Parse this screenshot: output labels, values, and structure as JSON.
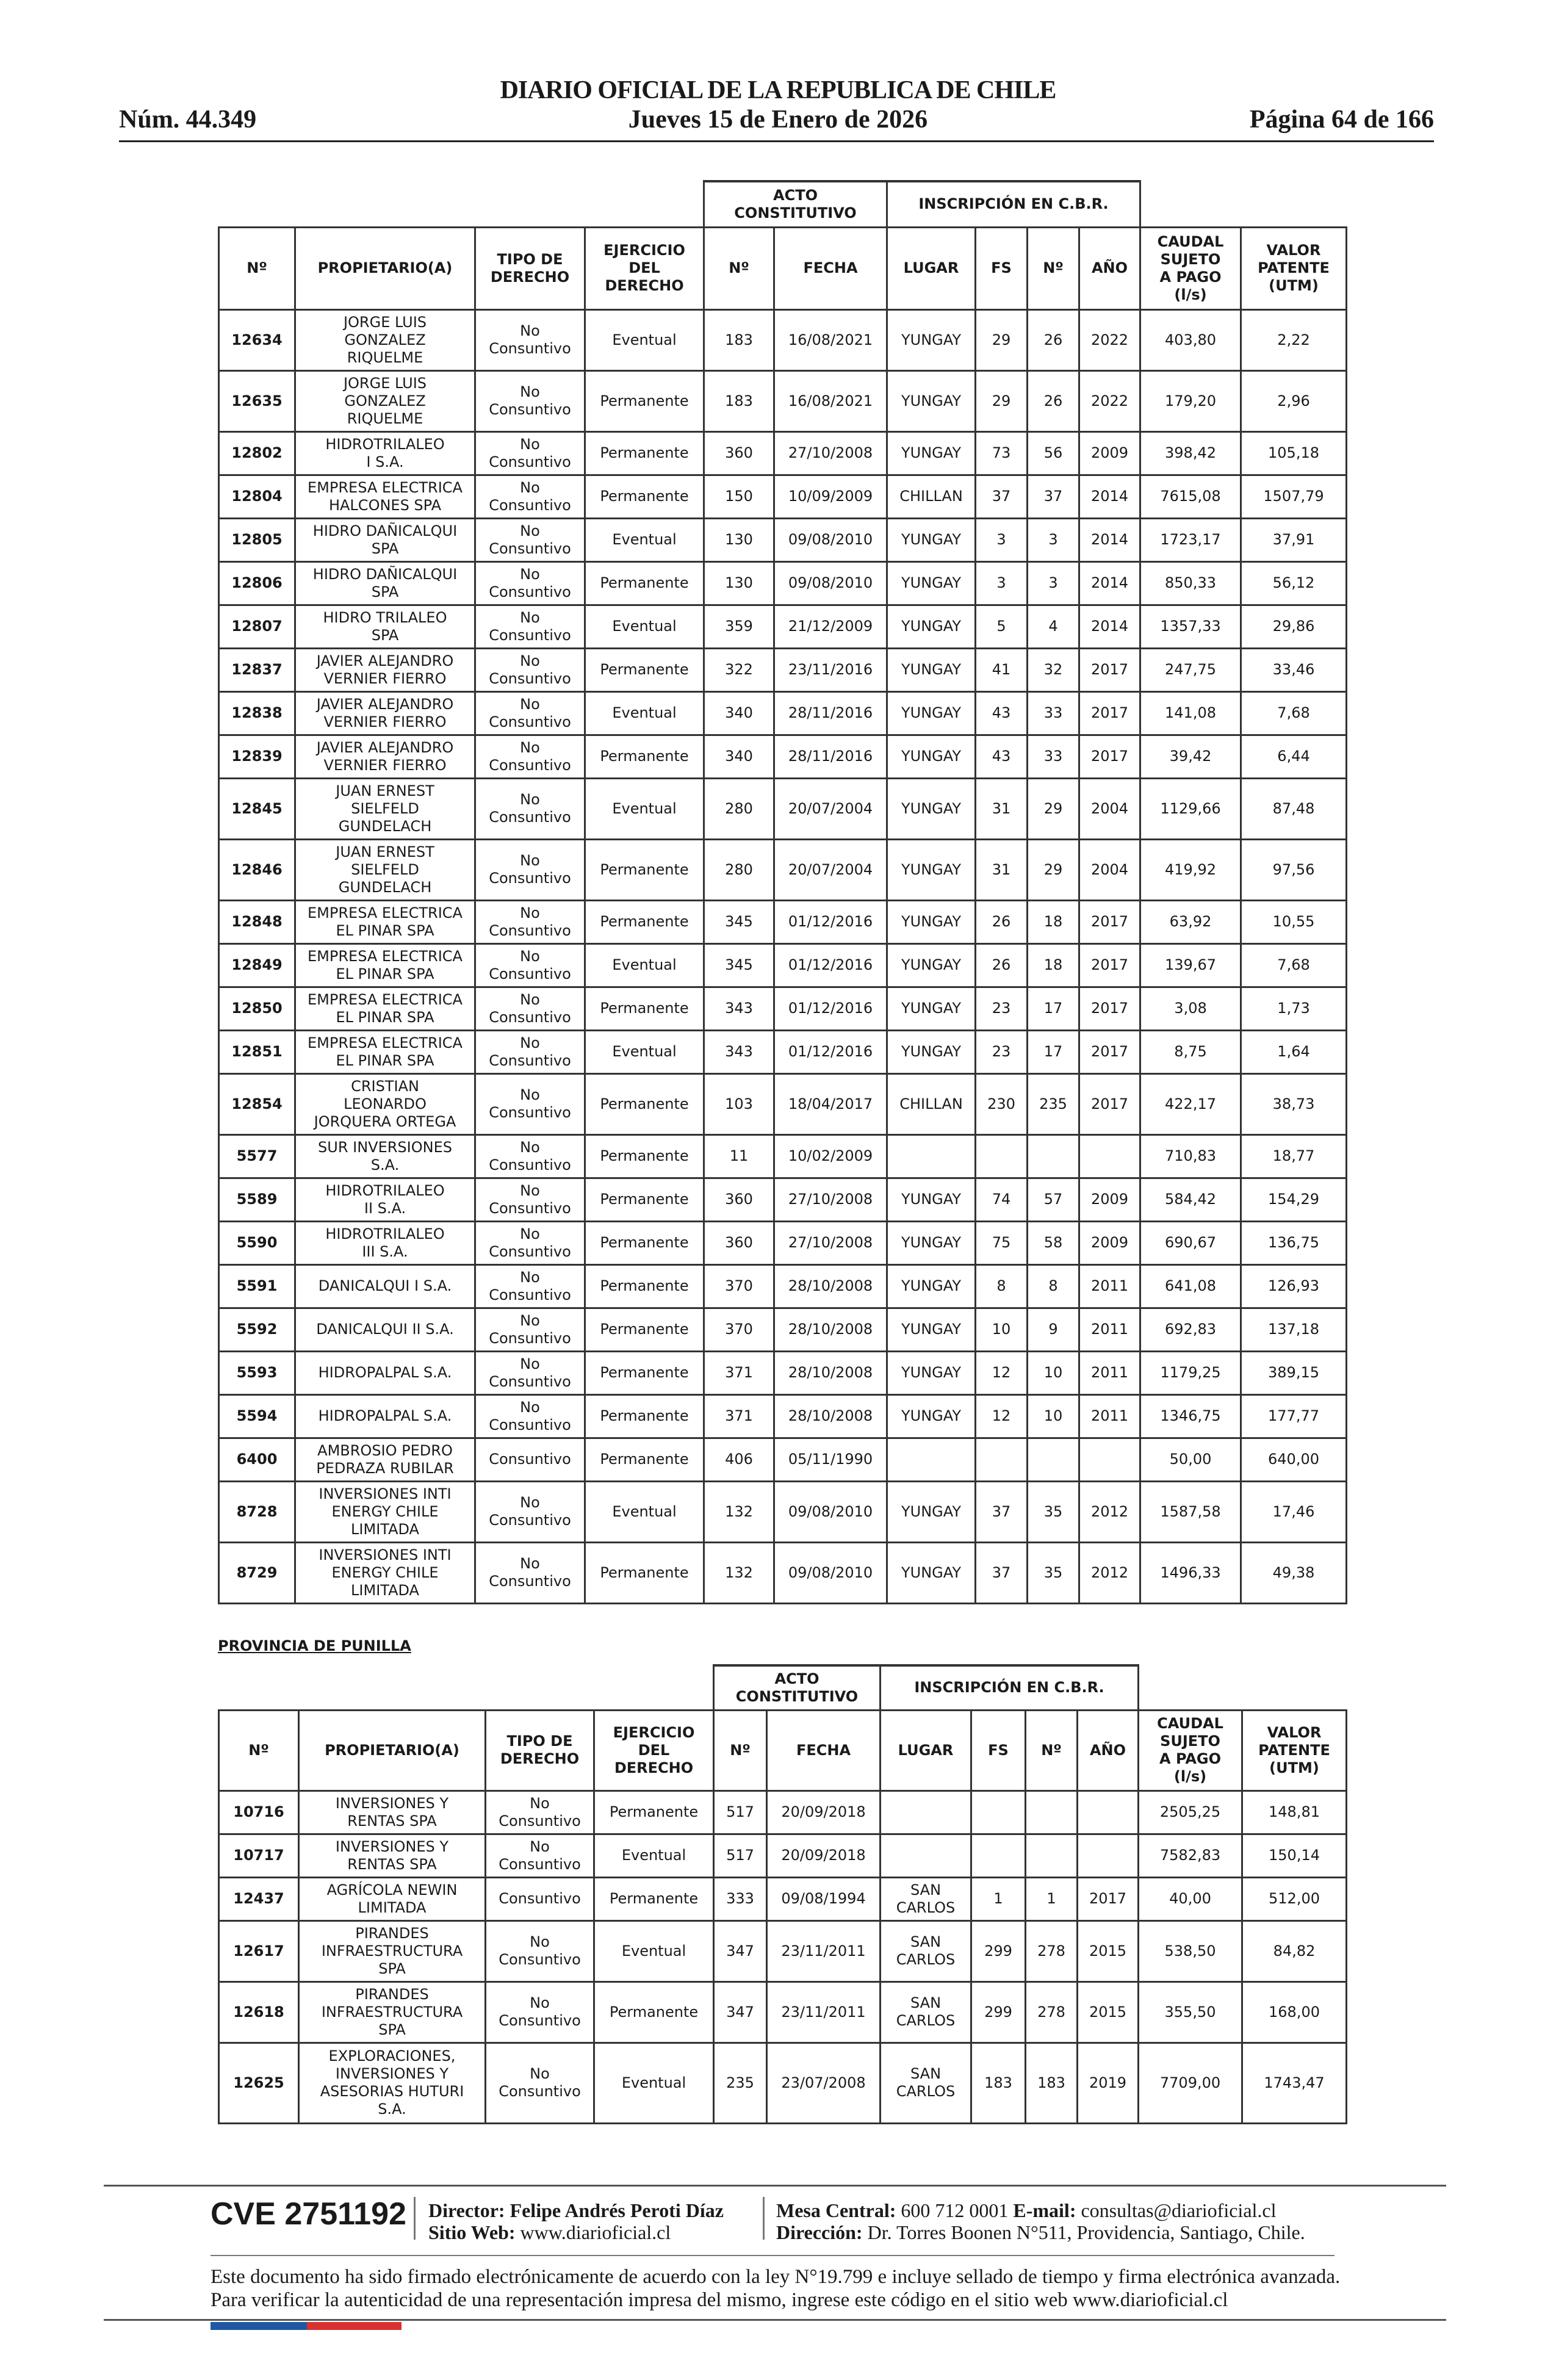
{
  "header": {
    "title": "DIARIO OFICIAL DE LA REPUBLICA DE CHILE",
    "number": "Núm. 44.349",
    "date": "Jueves 15 de Enero de 2026",
    "page": "Página 64 de 166"
  },
  "columns": {
    "group_acto": "ACTO\nCONSTITUTIVO",
    "group_inscripcion": "INSCRIPCIÓN EN C.B.R.",
    "headers": [
      "Nº",
      "PROPIETARIO(A)",
      "TIPO DE\nDERECHO",
      "EJERCICIO\nDEL\nDERECHO",
      "Nº",
      "FECHA",
      "LUGAR",
      "FS",
      "Nº",
      "AÑO",
      "CAUDAL\nSUJETO\nA PAGO\n(l/s)",
      "VALOR\nPATENTE\n(UTM)"
    ]
  },
  "table1": {
    "rows": [
      [
        "12634",
        "JORGE LUIS\nGONZALEZ\nRIQUELME",
        "No\nConsuntivo",
        "Eventual",
        "183",
        "16/08/2021",
        "YUNGAY",
        "29",
        "26",
        "2022",
        "403,80",
        "2,22"
      ],
      [
        "12635",
        "JORGE LUIS\nGONZALEZ\nRIQUELME",
        "No\nConsuntivo",
        "Permanente",
        "183",
        "16/08/2021",
        "YUNGAY",
        "29",
        "26",
        "2022",
        "179,20",
        "2,96"
      ],
      [
        "12802",
        "HIDROTRILALEO\nI S.A.",
        "No\nConsuntivo",
        "Permanente",
        "360",
        "27/10/2008",
        "YUNGAY",
        "73",
        "56",
        "2009",
        "398,42",
        "105,18"
      ],
      [
        "12804",
        "EMPRESA ELECTRICA\nHALCONES SPA",
        "No\nConsuntivo",
        "Permanente",
        "150",
        "10/09/2009",
        "CHILLAN",
        "37",
        "37",
        "2014",
        "7615,08",
        "1507,79"
      ],
      [
        "12805",
        "HIDRO DAÑICALQUI\nSPA",
        "No\nConsuntivo",
        "Eventual",
        "130",
        "09/08/2010",
        "YUNGAY",
        "3",
        "3",
        "2014",
        "1723,17",
        "37,91"
      ],
      [
        "12806",
        "HIDRO DAÑICALQUI\nSPA",
        "No\nConsuntivo",
        "Permanente",
        "130",
        "09/08/2010",
        "YUNGAY",
        "3",
        "3",
        "2014",
        "850,33",
        "56,12"
      ],
      [
        "12807",
        "HIDRO TRILALEO\nSPA",
        "No\nConsuntivo",
        "Eventual",
        "359",
        "21/12/2009",
        "YUNGAY",
        "5",
        "4",
        "2014",
        "1357,33",
        "29,86"
      ],
      [
        "12837",
        "JAVIER ALEJANDRO\nVERNIER FIERRO",
        "No\nConsuntivo",
        "Permanente",
        "322",
        "23/11/2016",
        "YUNGAY",
        "41",
        "32",
        "2017",
        "247,75",
        "33,46"
      ],
      [
        "12838",
        "JAVIER ALEJANDRO\nVERNIER FIERRO",
        "No\nConsuntivo",
        "Eventual",
        "340",
        "28/11/2016",
        "YUNGAY",
        "43",
        "33",
        "2017",
        "141,08",
        "7,68"
      ],
      [
        "12839",
        "JAVIER ALEJANDRO\nVERNIER FIERRO",
        "No\nConsuntivo",
        "Permanente",
        "340",
        "28/11/2016",
        "YUNGAY",
        "43",
        "33",
        "2017",
        "39,42",
        "6,44"
      ],
      [
        "12845",
        "JUAN ERNEST\nSIELFELD\nGUNDELACH",
        "No\nConsuntivo",
        "Eventual",
        "280",
        "20/07/2004",
        "YUNGAY",
        "31",
        "29",
        "2004",
        "1129,66",
        "87,48"
      ],
      [
        "12846",
        "JUAN ERNEST\nSIELFELD\nGUNDELACH",
        "No\nConsuntivo",
        "Permanente",
        "280",
        "20/07/2004",
        "YUNGAY",
        "31",
        "29",
        "2004",
        "419,92",
        "97,56"
      ],
      [
        "12848",
        "EMPRESA ELECTRICA\nEL PINAR SPA",
        "No\nConsuntivo",
        "Permanente",
        "345",
        "01/12/2016",
        "YUNGAY",
        "26",
        "18",
        "2017",
        "63,92",
        "10,55"
      ],
      [
        "12849",
        "EMPRESA ELECTRICA\nEL PINAR SPA",
        "No\nConsuntivo",
        "Eventual",
        "345",
        "01/12/2016",
        "YUNGAY",
        "26",
        "18",
        "2017",
        "139,67",
        "7,68"
      ],
      [
        "12850",
        "EMPRESA ELECTRICA\nEL PINAR SPA",
        "No\nConsuntivo",
        "Permanente",
        "343",
        "01/12/2016",
        "YUNGAY",
        "23",
        "17",
        "2017",
        "3,08",
        "1,73"
      ],
      [
        "12851",
        "EMPRESA ELECTRICA\nEL PINAR SPA",
        "No\nConsuntivo",
        "Eventual",
        "343",
        "01/12/2016",
        "YUNGAY",
        "23",
        "17",
        "2017",
        "8,75",
        "1,64"
      ],
      [
        "12854",
        "CRISTIAN\nLEONARDO\nJORQUERA ORTEGA",
        "No\nConsuntivo",
        "Permanente",
        "103",
        "18/04/2017",
        "CHILLAN",
        "230",
        "235",
        "2017",
        "422,17",
        "38,73"
      ],
      [
        "5577",
        "SUR INVERSIONES\nS.A.",
        "No\nConsuntivo",
        "Permanente",
        "11",
        "10/02/2009",
        "",
        "",
        "",
        "",
        "710,83",
        "18,77"
      ],
      [
        "5589",
        "HIDROTRILALEO\nII S.A.",
        "No\nConsuntivo",
        "Permanente",
        "360",
        "27/10/2008",
        "YUNGAY",
        "74",
        "57",
        "2009",
        "584,42",
        "154,29"
      ],
      [
        "5590",
        "HIDROTRILALEO\nIII S.A.",
        "No\nConsuntivo",
        "Permanente",
        "360",
        "27/10/2008",
        "YUNGAY",
        "75",
        "58",
        "2009",
        "690,67",
        "136,75"
      ],
      [
        "5591",
        "DANICALQUI I S.A.",
        "No\nConsuntivo",
        "Permanente",
        "370",
        "28/10/2008",
        "YUNGAY",
        "8",
        "8",
        "2011",
        "641,08",
        "126,93"
      ],
      [
        "5592",
        "DANICALQUI II S.A.",
        "No\nConsuntivo",
        "Permanente",
        "370",
        "28/10/2008",
        "YUNGAY",
        "10",
        "9",
        "2011",
        "692,83",
        "137,18"
      ],
      [
        "5593",
        "HIDROPALPAL S.A.",
        "No\nConsuntivo",
        "Permanente",
        "371",
        "28/10/2008",
        "YUNGAY",
        "12",
        "10",
        "2011",
        "1179,25",
        "389,15"
      ],
      [
        "5594",
        "HIDROPALPAL S.A.",
        "No\nConsuntivo",
        "Permanente",
        "371",
        "28/10/2008",
        "YUNGAY",
        "12",
        "10",
        "2011",
        "1346,75",
        "177,77"
      ],
      [
        "6400",
        "AMBROSIO PEDRO\nPEDRAZA RUBILAR",
        "Consuntivo",
        "Permanente",
        "406",
        "05/11/1990",
        "",
        "",
        "",
        "",
        "50,00",
        "640,00"
      ],
      [
        "8728",
        "INVERSIONES INTI\nENERGY CHILE\nLIMITADA",
        "No\nConsuntivo",
        "Eventual",
        "132",
        "09/08/2010",
        "YUNGAY",
        "37",
        "35",
        "2012",
        "1587,58",
        "17,46"
      ],
      [
        "8729",
        "INVERSIONES INTI\nENERGY CHILE\nLIMITADA",
        "No\nConsuntivo",
        "Permanente",
        "132",
        "09/08/2010",
        "YUNGAY",
        "37",
        "35",
        "2012",
        "1496,33",
        "49,38"
      ]
    ]
  },
  "province_title": "PROVINCIA DE PUNILLA",
  "table2": {
    "rows": [
      [
        "10716",
        "INVERSIONES Y\nRENTAS SPA",
        "No\nConsuntivo",
        "Permanente",
        "517",
        "20/09/2018",
        "",
        "",
        "",
        "",
        "2505,25",
        "148,81"
      ],
      [
        "10717",
        "INVERSIONES Y\nRENTAS SPA",
        "No\nConsuntivo",
        "Eventual",
        "517",
        "20/09/2018",
        "",
        "",
        "",
        "",
        "7582,83",
        "150,14"
      ],
      [
        "12437",
        "AGRÍCOLA NEWIN\nLIMITADA",
        "Consuntivo",
        "Permanente",
        "333",
        "09/08/1994",
        "SAN\nCARLOS",
        "1",
        "1",
        "2017",
        "40,00",
        "512,00"
      ],
      [
        "12617",
        "PIRANDES\nINFRAESTRUCTURA\nSPA",
        "No\nConsuntivo",
        "Eventual",
        "347",
        "23/11/2011",
        "SAN\nCARLOS",
        "299",
        "278",
        "2015",
        "538,50",
        "84,82"
      ],
      [
        "12618",
        "PIRANDES\nINFRAESTRUCTURA\nSPA",
        "No\nConsuntivo",
        "Permanente",
        "347",
        "23/11/2011",
        "SAN\nCARLOS",
        "299",
        "278",
        "2015",
        "355,50",
        "168,00"
      ],
      [
        "12625",
        "EXPLORACIONES,\nINVERSIONES Y\nASESORIAS HUTURI\nS.A.",
        "No\nConsuntivo",
        "Eventual",
        "235",
        "23/07/2008",
        "SAN\nCARLOS",
        "183",
        "183",
        "2019",
        "7709,00",
        "1743,47"
      ]
    ]
  },
  "footer": {
    "cve": "CVE 2751192",
    "director": "Director: Felipe Andrés Peroti Díaz",
    "website_label": "Sitio Web:",
    "website": "www.diarioficial.cl",
    "phone_label": "Mesa Central:",
    "phone": "600 712 0001",
    "email_label": "E-mail:",
    "email": "consultas@diarioficial.cl",
    "address_label": "Dirección:",
    "address": "Dr. Torres Boonen N°511, Providencia, Santiago, Chile.",
    "legal_text": "Este documento ha sido firmado electrónicamente de acuerdo con la ley N°19.799 e incluye sellado de tiempo y firma electrónica avanzada. Para verificar la autenticidad de una representación impresa del mismo, ingrese este código en el sitio web www.diarioficial.cl"
  },
  "colors": {
    "flag_blue": "#1f57a5",
    "flag_red": "#d8322f",
    "border": "#333333"
  }
}
